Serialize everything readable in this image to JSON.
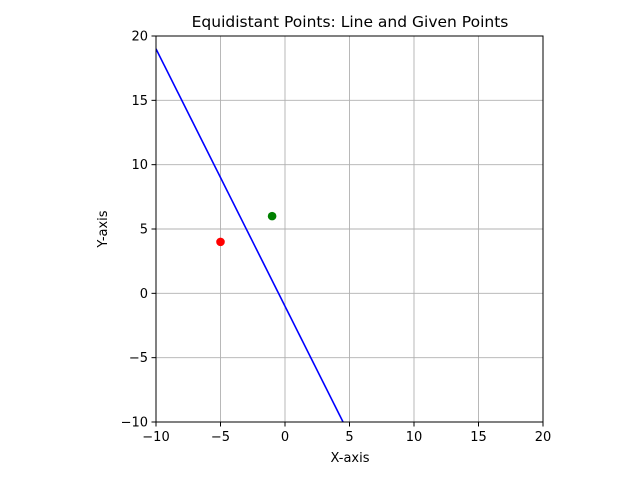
{
  "chart_data": {
    "type": "scatter",
    "title": "Equidistant Points: Line and Given Points",
    "xlabel": "X-axis",
    "ylabel": "Y-axis",
    "xlim": [
      -10,
      20
    ],
    "ylim": [
      -10,
      20
    ],
    "xticks": [
      -10,
      -5,
      0,
      5,
      10,
      15,
      20
    ],
    "yticks": [
      -10,
      -5,
      0,
      5,
      10,
      15,
      20
    ],
    "xtick_labels": [
      "−10",
      "−5",
      "0",
      "5",
      "10",
      "15",
      "20"
    ],
    "ytick_labels": [
      "−10",
      "−5",
      "0",
      "5",
      "10",
      "15",
      "20"
    ],
    "grid": true,
    "line": {
      "color": "#0000ff",
      "x": [
        -10,
        4.5
      ],
      "y": [
        19,
        -10
      ]
    },
    "points": [
      {
        "x": -5,
        "y": 4,
        "color": "#ff0000"
      },
      {
        "x": -1,
        "y": 6,
        "color": "#008000"
      }
    ]
  }
}
